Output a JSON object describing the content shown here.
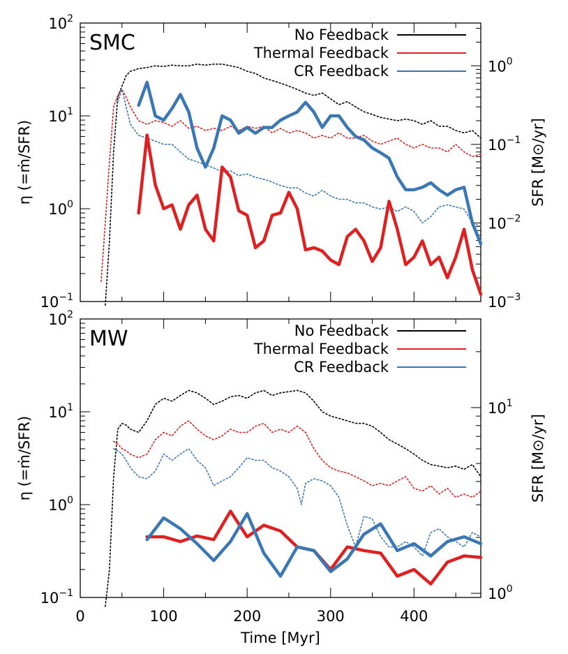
{
  "chart_data": [
    {
      "type": "line",
      "panel_label": "SMC",
      "xlabel": "",
      "ylabel_left": "η (=ṁ/SFR)",
      "ylabel_right": "SFR [M⊙/yr]",
      "xlim": [
        0,
        480
      ],
      "ylim_left": [
        0.1,
        100
      ],
      "ylim_right": [
        0.001,
        3.5
      ],
      "log_y": true,
      "x_ticks": [],
      "left_ticks": [
        {
          "base": "10",
          "exp": "−1"
        },
        {
          "base": "10",
          "exp": "0"
        },
        {
          "base": "10",
          "exp": "1"
        },
        {
          "base": "10",
          "exp": "2"
        }
      ],
      "right_ticks": [
        {
          "base": "10",
          "exp": "−3"
        },
        {
          "base": "10",
          "exp": "−2"
        },
        {
          "base": "10",
          "exp": "−1"
        },
        {
          "base": "10",
          "exp": "0"
        }
      ],
      "legend_position": "top-right",
      "series": [
        {
          "name": "No Feedback",
          "color": "#000000",
          "style": "legend",
          "width": 2
        },
        {
          "name": "Thermal Feedback",
          "color": "#e02020",
          "style": "legend",
          "width": 2
        },
        {
          "name": "CR Feedback",
          "color": "#3a78b5",
          "style": "legend",
          "width": 2
        },
        {
          "name": "",
          "color": "#000000",
          "style": "dotted",
          "axis": "right",
          "width": 1.6,
          "x": [
            30,
            35,
            40,
            45,
            50,
            55,
            60,
            70,
            80,
            90,
            100,
            110,
            120,
            130,
            140,
            150,
            160,
            170,
            180,
            190,
            200,
            210,
            220,
            230,
            240,
            250,
            260,
            270,
            280,
            290,
            300,
            310,
            320,
            330,
            340,
            350,
            360,
            370,
            380,
            390,
            400,
            410,
            420,
            430,
            440,
            450,
            460,
            470,
            480
          ],
          "y": [
            0.0009,
            0.006,
            0.08,
            0.4,
            0.55,
            0.75,
            0.85,
            0.92,
            0.95,
            1.0,
            0.98,
            1.02,
            1.0,
            1.0,
            1.05,
            1.02,
            1.05,
            1.05,
            1.0,
            0.95,
            0.85,
            0.8,
            0.7,
            0.65,
            0.6,
            0.55,
            0.5,
            0.45,
            0.42,
            0.45,
            0.38,
            0.32,
            0.35,
            0.3,
            0.26,
            0.24,
            0.22,
            0.21,
            0.2,
            0.21,
            0.2,
            0.18,
            0.2,
            0.17,
            0.17,
            0.15,
            0.14,
            0.15,
            0.12
          ]
        },
        {
          "name": "",
          "color": "#e02020",
          "style": "dotted",
          "axis": "right",
          "width": 1.6,
          "x": [
            25,
            30,
            35,
            40,
            45,
            50,
            55,
            60,
            70,
            80,
            90,
            100,
            110,
            120,
            130,
            140,
            150,
            160,
            170,
            180,
            190,
            200,
            210,
            220,
            230,
            240,
            250,
            260,
            270,
            280,
            290,
            300,
            310,
            320,
            330,
            340,
            350,
            360,
            370,
            380,
            390,
            400,
            410,
            420,
            430,
            440,
            450,
            460,
            470,
            480
          ],
          "y": [
            0.0018,
            0.01,
            0.06,
            0.3,
            0.42,
            0.5,
            0.4,
            0.3,
            0.2,
            0.18,
            0.2,
            0.19,
            0.17,
            0.2,
            0.16,
            0.17,
            0.15,
            0.16,
            0.15,
            0.17,
            0.15,
            0.17,
            0.16,
            0.17,
            0.14,
            0.16,
            0.14,
            0.15,
            0.14,
            0.12,
            0.13,
            0.12,
            0.14,
            0.12,
            0.12,
            0.13,
            0.11,
            0.1,
            0.11,
            0.12,
            0.1,
            0.09,
            0.1,
            0.09,
            0.09,
            0.08,
            0.1,
            0.08,
            0.07,
            0.075
          ]
        },
        {
          "name": "",
          "color": "#3a78b5",
          "style": "dotted",
          "axis": "right",
          "width": 1.6,
          "x": [
            45,
            50,
            55,
            60,
            70,
            80,
            90,
            100,
            110,
            120,
            130,
            140,
            150,
            160,
            170,
            180,
            190,
            200,
            210,
            220,
            230,
            240,
            250,
            260,
            270,
            280,
            290,
            300,
            310,
            320,
            330,
            340,
            350,
            360,
            370,
            380,
            390,
            400,
            410,
            420,
            430,
            440,
            450,
            460,
            470,
            480
          ],
          "y": [
            0.35,
            0.5,
            0.3,
            0.18,
            0.13,
            0.12,
            0.11,
            0.1,
            0.1,
            0.08,
            0.065,
            0.06,
            0.055,
            0.05,
            0.045,
            0.046,
            0.04,
            0.042,
            0.038,
            0.036,
            0.033,
            0.03,
            0.028,
            0.028,
            0.024,
            0.022,
            0.026,
            0.022,
            0.02,
            0.02,
            0.018,
            0.018,
            0.016,
            0.015,
            0.016,
            0.014,
            0.016,
            0.014,
            0.01,
            0.012,
            0.016,
            0.017,
            0.016,
            0.015,
            0.01,
            0.009
          ]
        },
        {
          "name": "",
          "color": "#3a78b5",
          "style": "solid",
          "axis": "left",
          "width": 4.5,
          "x": [
            70,
            80,
            90,
            100,
            110,
            120,
            130,
            140,
            150,
            160,
            170,
            180,
            190,
            200,
            210,
            220,
            230,
            240,
            250,
            260,
            270,
            280,
            290,
            300,
            310,
            320,
            330,
            340,
            350,
            360,
            370,
            380,
            390,
            400,
            410,
            420,
            430,
            440,
            450,
            460,
            470,
            480
          ],
          "y": [
            13,
            23,
            10,
            9,
            12,
            17,
            11,
            4.5,
            2.8,
            4.5,
            10,
            9,
            6.5,
            7.5,
            6.5,
            7.5,
            7.5,
            9,
            10,
            11,
            14,
            11,
            7.5,
            10,
            10,
            7.5,
            6,
            5.5,
            4.5,
            4,
            3.5,
            2.2,
            1.6,
            1.6,
            1.7,
            1.9,
            1.6,
            1.4,
            1.6,
            1.7,
            0.7,
            0.42
          ]
        },
        {
          "name": "",
          "color": "#e02020",
          "style": "solid",
          "axis": "left",
          "width": 4.5,
          "x": [
            70,
            80,
            90,
            100,
            110,
            120,
            130,
            140,
            150,
            160,
            170,
            180,
            190,
            200,
            210,
            220,
            230,
            240,
            250,
            260,
            270,
            280,
            290,
            300,
            310,
            320,
            330,
            340,
            350,
            360,
            370,
            380,
            390,
            400,
            410,
            420,
            430,
            440,
            450,
            460,
            470,
            480
          ],
          "y": [
            0.9,
            6.2,
            1.8,
            1.0,
            1.1,
            0.6,
            1.1,
            1.4,
            0.6,
            0.45,
            2.8,
            2.2,
            0.95,
            0.85,
            0.38,
            0.45,
            0.85,
            0.9,
            1.5,
            1.0,
            0.36,
            0.38,
            0.35,
            0.28,
            0.25,
            0.5,
            0.6,
            0.45,
            0.27,
            0.38,
            1.2,
            0.6,
            0.25,
            0.3,
            0.45,
            0.25,
            0.3,
            0.18,
            0.3,
            0.6,
            0.22,
            0.12
          ]
        }
      ]
    },
    {
      "type": "line",
      "panel_label": "MW",
      "xlabel": "Time [Myr]",
      "ylabel_left": "η (=ṁ/SFR)",
      "ylabel_right": "SFR [M⊙/yr]",
      "xlim": [
        0,
        480
      ],
      "ylim_left": [
        0.1,
        100
      ],
      "ylim_right": [
        0.95,
        30
      ],
      "log_y": true,
      "x_ticks": [
        "0",
        "100",
        "200",
        "300",
        "400"
      ],
      "left_ticks": [
        {
          "base": "10",
          "exp": "−1"
        },
        {
          "base": "10",
          "exp": "0"
        },
        {
          "base": "10",
          "exp": "1"
        },
        {
          "base": "10",
          "exp": "2"
        }
      ],
      "right_ticks": [
        {
          "base": "10",
          "exp": "0",
          "value": 1
        },
        {
          "base": "10",
          "exp": "1",
          "value": 10
        }
      ],
      "legend_position": "top-right",
      "series": [
        {
          "name": "No Feedback",
          "color": "#000000",
          "style": "legend",
          "width": 2
        },
        {
          "name": "Thermal Feedback",
          "color": "#e02020",
          "style": "legend",
          "width": 2
        },
        {
          "name": "CR Feedback",
          "color": "#3a78b5",
          "style": "legend",
          "width": 2
        },
        {
          "name": "",
          "color": "#000000",
          "style": "dotted",
          "axis": "left",
          "width": 1.6,
          "x": [
            30,
            35,
            40,
            45,
            50,
            55,
            60,
            70,
            80,
            90,
            100,
            110,
            120,
            130,
            140,
            150,
            160,
            170,
            180,
            190,
            200,
            210,
            220,
            230,
            240,
            250,
            260,
            270,
            280,
            290,
            300,
            310,
            320,
            330,
            340,
            350,
            360,
            370,
            380,
            390,
            400,
            410,
            420,
            430,
            440,
            450,
            460,
            470,
            480
          ],
          "y": [
            0.08,
            0.2,
            2.0,
            6.5,
            7.5,
            7.2,
            6.5,
            6.0,
            8.0,
            12.0,
            14.0,
            13.0,
            15.0,
            17.0,
            16.0,
            14.0,
            12.0,
            13.0,
            14.5,
            15.0,
            14.0,
            16.0,
            17.0,
            15.0,
            16.0,
            16.5,
            17.0,
            16.0,
            13.0,
            10.0,
            9.0,
            8.5,
            8.0,
            7.5,
            7.5,
            7.0,
            6.0,
            5.0,
            4.5,
            4.0,
            3.5,
            3.0,
            2.7,
            2.6,
            2.5,
            2.6,
            2.4,
            2.7,
            2.0
          ]
        },
        {
          "name": "",
          "color": "#e02020",
          "style": "dotted",
          "axis": "left",
          "width": 1.6,
          "x": [
            40,
            45,
            50,
            55,
            60,
            70,
            80,
            90,
            100,
            110,
            120,
            130,
            140,
            150,
            160,
            170,
            180,
            190,
            200,
            210,
            220,
            230,
            240,
            250,
            260,
            270,
            280,
            290,
            300,
            310,
            320,
            330,
            340,
            350,
            360,
            370,
            380,
            390,
            400,
            410,
            420,
            430,
            440,
            450,
            460,
            470,
            480
          ],
          "y": [
            4.8,
            4.5,
            4.0,
            3.8,
            3.5,
            3.2,
            3.5,
            5.0,
            6.0,
            5.5,
            7.0,
            8.0,
            6.5,
            5.5,
            5.0,
            5.5,
            6.5,
            6.0,
            6.0,
            7.0,
            7.5,
            6.0,
            6.5,
            6.0,
            7.0,
            6.0,
            4.0,
            3.0,
            2.5,
            2.3,
            2.2,
            2.0,
            1.8,
            1.6,
            1.7,
            1.6,
            1.8,
            2.0,
            1.5,
            1.4,
            1.6,
            1.3,
            1.5,
            1.2,
            1.3,
            1.2,
            1.4
          ]
        },
        {
          "name": "",
          "color": "#3a78b5",
          "style": "dotted",
          "axis": "left",
          "width": 1.6,
          "x": [
            40,
            45,
            50,
            55,
            60,
            70,
            80,
            90,
            100,
            110,
            120,
            130,
            140,
            150,
            160,
            170,
            180,
            190,
            200,
            210,
            220,
            230,
            240,
            250,
            260,
            265,
            270,
            275,
            280,
            290,
            300,
            310,
            320,
            330,
            340,
            350,
            360,
            370,
            380,
            390,
            400,
            410,
            420,
            430,
            440,
            450,
            460,
            470,
            480
          ],
          "y": [
            4.0,
            3.8,
            3.5,
            3.0,
            2.5,
            2.0,
            1.9,
            2.3,
            3.5,
            3.0,
            3.5,
            4.0,
            3.0,
            2.5,
            1.6,
            1.8,
            2.0,
            2.5,
            3.2,
            3.0,
            3.0,
            2.5,
            2.3,
            2.0,
            1.5,
            1.0,
            1.7,
            1.8,
            1.9,
            1.8,
            1.6,
            1.2,
            0.6,
            0.35,
            0.75,
            0.7,
            0.45,
            0.35,
            0.35,
            0.4,
            0.35,
            0.28,
            0.5,
            0.55,
            0.45,
            0.4,
            0.35,
            0.5,
            0.45
          ]
        },
        {
          "name": "",
          "color": "#e02020",
          "style": "solid",
          "axis": "left",
          "width": 4.5,
          "x": [
            80,
            100,
            120,
            140,
            160,
            180,
            200,
            220,
            240,
            260,
            280,
            300,
            320,
            340,
            360,
            380,
            400,
            420,
            440,
            460,
            480
          ],
          "y": [
            0.45,
            0.45,
            0.4,
            0.46,
            0.42,
            0.85,
            0.45,
            0.6,
            0.52,
            0.35,
            0.32,
            0.2,
            0.35,
            0.32,
            0.3,
            0.17,
            0.2,
            0.14,
            0.24,
            0.28,
            0.27
          ]
        },
        {
          "name": "",
          "color": "#3a78b5",
          "style": "solid",
          "axis": "left",
          "width": 4.5,
          "x": [
            80,
            100,
            120,
            140,
            160,
            180,
            200,
            220,
            240,
            260,
            280,
            300,
            320,
            340,
            360,
            380,
            400,
            420,
            440,
            460,
            480
          ],
          "y": [
            0.42,
            0.72,
            0.55,
            0.38,
            0.25,
            0.4,
            0.8,
            0.3,
            0.17,
            0.35,
            0.32,
            0.19,
            0.26,
            0.48,
            0.62,
            0.32,
            0.38,
            0.28,
            0.4,
            0.45,
            0.38
          ]
        }
      ]
    }
  ]
}
